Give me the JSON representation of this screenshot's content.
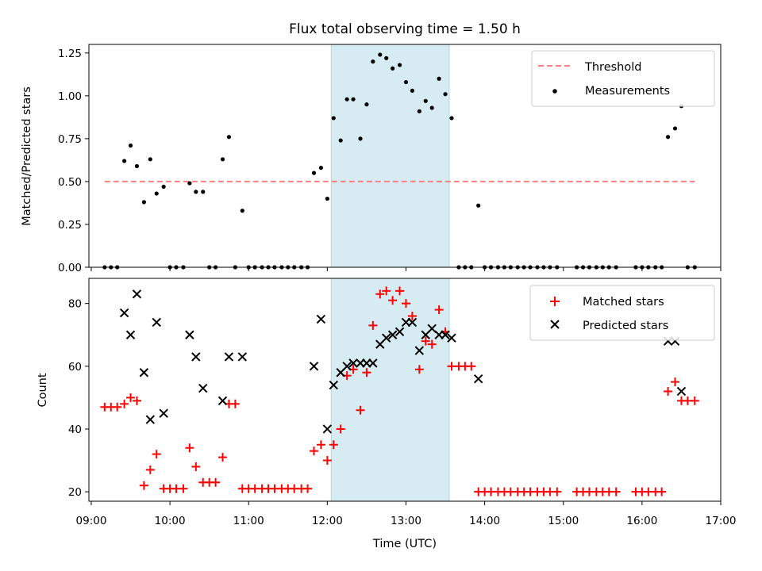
{
  "chart_data": {
    "type": "scatter",
    "title": "Flux total observing time = 1.50 h",
    "xlabel": "Time (UTC)",
    "x_tick_labels": [
      "09:00",
      "10:00",
      "11:00",
      "12:00",
      "13:00",
      "14:00",
      "15:00",
      "16:00",
      "17:00"
    ],
    "xlim_hours": [
      8.97,
      17.0
    ],
    "shaded_interval_hours": [
      12.05,
      13.55
    ],
    "shade_color": "#add8e6",
    "panels": [
      {
        "ylabel": "Matched/Predicted stars",
        "ylim": [
          0,
          1.3
        ],
        "y_tick_labels": [
          "0.00",
          "0.25",
          "0.50",
          "0.75",
          "1.00",
          "1.25"
        ],
        "y_ticks": [
          0,
          0.25,
          0.5,
          0.75,
          1.0,
          1.25
        ],
        "legend": {
          "position": "top-right",
          "entries": [
            "Threshold",
            "Measurements"
          ]
        },
        "threshold": {
          "name": "Threshold",
          "y": 0.5,
          "x_range": [
            9.17,
            16.67
          ],
          "color": "#ff8080"
        },
        "measurements": {
          "name": "Measurements",
          "color": "#000000",
          "x": [
            9.17,
            9.25,
            9.33,
            9.42,
            9.5,
            9.58,
            9.67,
            9.75,
            9.83,
            9.92,
            10.0,
            10.08,
            10.17,
            10.25,
            10.33,
            10.42,
            10.5,
            10.58,
            10.67,
            10.75,
            10.83,
            10.92,
            11.0,
            11.08,
            11.17,
            11.25,
            11.33,
            11.42,
            11.5,
            11.58,
            11.67,
            11.75,
            11.83,
            11.92,
            12.0,
            12.08,
            12.17,
            12.25,
            12.33,
            12.42,
            12.5,
            12.58,
            12.67,
            12.75,
            12.83,
            12.92,
            13.0,
            13.08,
            13.17,
            13.25,
            13.33,
            13.42,
            13.5,
            13.58,
            13.67,
            13.75,
            13.83,
            13.92,
            14.0,
            14.08,
            14.17,
            14.25,
            14.33,
            14.42,
            14.5,
            14.58,
            14.67,
            14.75,
            14.83,
            14.92,
            15.17,
            15.25,
            15.33,
            15.42,
            15.5,
            15.58,
            15.67,
            15.92,
            16.0,
            16.08,
            16.17,
            16.25,
            16.33,
            16.42,
            16.5,
            16.58,
            16.67
          ],
          "y": [
            0,
            0,
            0,
            0.62,
            0.71,
            0.59,
            0.38,
            0.63,
            0.43,
            0.47,
            0,
            0,
            0,
            0.49,
            0.44,
            0.44,
            0,
            0,
            0.63,
            0.76,
            0,
            0.33,
            0,
            0,
            0,
            0,
            0,
            0,
            0,
            0,
            0,
            0,
            0.55,
            0.58,
            0.4,
            0.87,
            0.74,
            0.98,
            0.98,
            0.75,
            0.95,
            1.2,
            1.24,
            1.22,
            1.16,
            1.18,
            1.08,
            1.03,
            0.91,
            0.97,
            0.93,
            1.1,
            1.01,
            0.87,
            0,
            0,
            0,
            0.36,
            0,
            0,
            0,
            0,
            0,
            0,
            0,
            0,
            0,
            0,
            0,
            0,
            0,
            0,
            0,
            0,
            0,
            0,
            0,
            0,
            0,
            0,
            0,
            0,
            0.76,
            0.81,
            0.94,
            0,
            0
          ]
        }
      },
      {
        "ylabel": "Count",
        "ylim": [
          17,
          88
        ],
        "y_tick_labels": [
          "20",
          "40",
          "60",
          "80"
        ],
        "y_ticks": [
          20,
          40,
          60,
          80
        ],
        "legend": {
          "position": "top-right",
          "entries": [
            "Matched stars",
            "Predicted stars"
          ]
        },
        "series": [
          {
            "name": "Matched stars",
            "marker": "+",
            "color": "#ff0000",
            "x": [
              9.17,
              9.25,
              9.33,
              9.42,
              9.5,
              9.58,
              9.67,
              9.75,
              9.83,
              9.92,
              10.0,
              10.08,
              10.17,
              10.25,
              10.33,
              10.42,
              10.5,
              10.58,
              10.67,
              10.75,
              10.83,
              10.92,
              11.0,
              11.08,
              11.17,
              11.25,
              11.33,
              11.42,
              11.5,
              11.58,
              11.67,
              11.75,
              11.83,
              11.92,
              12.0,
              12.08,
              12.17,
              12.25,
              12.33,
              12.42,
              12.5,
              12.58,
              12.67,
              12.75,
              12.83,
              12.92,
              13.0,
              13.08,
              13.17,
              13.25,
              13.33,
              13.42,
              13.5,
              13.58,
              13.67,
              13.75,
              13.83,
              13.92,
              14.0,
              14.08,
              14.17,
              14.25,
              14.33,
              14.42,
              14.5,
              14.58,
              14.67,
              14.75,
              14.83,
              14.92,
              15.17,
              15.25,
              15.33,
              15.42,
              15.5,
              15.58,
              15.67,
              15.92,
              16.0,
              16.08,
              16.17,
              16.25,
              16.33,
              16.42,
              16.5,
              16.58,
              16.67
            ],
            "y": [
              47,
              47,
              47,
              48,
              50,
              49,
              22,
              27,
              32,
              21,
              21,
              21,
              21,
              34,
              28,
              23,
              23,
              23,
              31,
              48,
              48,
              21,
              21,
              21,
              21,
              21,
              21,
              21,
              21,
              21,
              21,
              21,
              33,
              35,
              30,
              35,
              40,
              57,
              59,
              46,
              58,
              73,
              83,
              84,
              81,
              84,
              80,
              76,
              59,
              68,
              67,
              78,
              71,
              60,
              60,
              60,
              60,
              20,
              20,
              20,
              20,
              20,
              20,
              20,
              20,
              20,
              20,
              20,
              20,
              20,
              20,
              20,
              20,
              20,
              20,
              20,
              20,
              20,
              20,
              20,
              20,
              20,
              52,
              55,
              49,
              49,
              49
            ]
          },
          {
            "name": "Predicted stars",
            "marker": "x",
            "color": "#000000",
            "x": [
              9.42,
              9.5,
              9.58,
              9.67,
              9.75,
              9.83,
              9.92,
              10.25,
              10.33,
              10.42,
              10.67,
              10.75,
              10.92,
              11.83,
              11.92,
              12.0,
              12.08,
              12.17,
              12.25,
              12.33,
              12.42,
              12.5,
              12.58,
              12.67,
              12.75,
              12.83,
              12.92,
              13.0,
              13.08,
              13.17,
              13.25,
              13.33,
              13.42,
              13.5,
              13.58,
              13.92,
              16.33,
              16.42,
              16.5
            ],
            "y": [
              77,
              70,
              83,
              58,
              43,
              74,
              45,
              70,
              63,
              53,
              49,
              63,
              63,
              60,
              75,
              40,
              54,
              58,
              60,
              61,
              61,
              61,
              61,
              67,
              69,
              70,
              71,
              74,
              74,
              65,
              70,
              72,
              70,
              70,
              69,
              56,
              68,
              68,
              52
            ]
          }
        ]
      }
    ]
  }
}
